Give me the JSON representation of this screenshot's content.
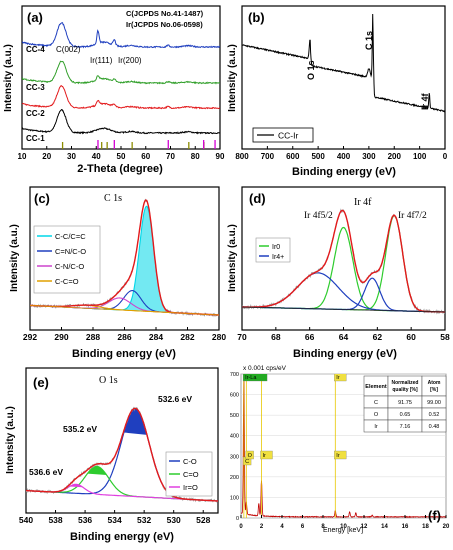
{
  "chart_data": [
    {
      "panel": "(a)",
      "type": "line",
      "xlabel": "2-Theta (degree)",
      "ylabel": "Intensity (a.u.)",
      "xlim": [
        10,
        90
      ],
      "xticks": [
        10,
        20,
        30,
        40,
        50,
        60,
        70,
        80,
        90
      ],
      "series": [
        {
          "name": "CC-1",
          "color": "#000000"
        },
        {
          "name": "CC-2",
          "color": "#e31a1c"
        },
        {
          "name": "CC-3",
          "color": "#33a02c"
        },
        {
          "name": "CC-4",
          "color": "#1f3fbf"
        }
      ],
      "peak_labels": [
        "C(002)",
        "Ir(111)",
        "Ir(200)"
      ],
      "legend": [
        {
          "text": "C(JCPDS No.41-1487)",
          "color": "#8c8c00"
        },
        {
          "text": "Ir(JCPDS No.06-0598)",
          "color": "#d400d4"
        }
      ],
      "ref_C": [
        26.4,
        42.2,
        44.4,
        54.5,
        77.4,
        83.5
      ],
      "ref_Ir": [
        40.7,
        47.3,
        69.1,
        83.4,
        88.0
      ]
    },
    {
      "panel": "(b)",
      "type": "line",
      "xlabel": "Binding energy (eV)",
      "ylabel": "Intensity (a.u.)",
      "xlim": [
        800,
        0
      ],
      "xticks": [
        800,
        700,
        600,
        500,
        400,
        300,
        200,
        100,
        0
      ],
      "series": [
        {
          "name": "CC-Ir",
          "color": "#000000"
        }
      ],
      "peak_labels": [
        "O 1s",
        "C 1s",
        "Ir 4f"
      ]
    },
    {
      "panel": "(c)",
      "type": "line",
      "title": "C 1s",
      "xlabel": "Binding energy (eV)",
      "ylabel": "Intensity (a.u.)",
      "xlim": [
        292,
        280
      ],
      "xticks": [
        292,
        290,
        288,
        286,
        284,
        282,
        280
      ],
      "components": [
        {
          "name": "C-C/C=C",
          "center": 284.6,
          "color": "#00d7e8"
        },
        {
          "name": "C=N/C-O",
          "center": 285.5,
          "color": "#1f3fbf"
        },
        {
          "name": "C-N/C-O",
          "center": 286.3,
          "color": "#cc44cc"
        },
        {
          "name": "C-C=O",
          "center": 288.4,
          "color": "#e0a000"
        }
      ]
    },
    {
      "panel": "(d)",
      "type": "line",
      "title": "Ir 4f",
      "xlabel": "Binding energy (eV)",
      "ylabel": "Intensity (a.u.)",
      "xlim": [
        70,
        58
      ],
      "xticks": [
        70,
        68,
        66,
        64,
        62,
        60,
        58
      ],
      "peak_labels": [
        "Ir 4f5/2",
        "Ir 4f7/2"
      ],
      "components": [
        {
          "name": "Ir0",
          "centers": [
            64.0,
            61.0
          ],
          "color": "#2ecc2e"
        },
        {
          "name": "Ir4+",
          "centers": [
            65.5,
            62.3
          ],
          "color": "#1f3fbf"
        }
      ]
    },
    {
      "panel": "(e)",
      "type": "line",
      "title": "O 1s",
      "xlabel": "Binding energy (eV)",
      "ylabel": "Intensity (a.u.)",
      "xlim": [
        540,
        527
      ],
      "xticks": [
        540,
        538,
        536,
        534,
        532,
        530,
        528
      ],
      "peak_labels": [
        "532.6 eV",
        "535.2 eV",
        "536.6 eV"
      ],
      "components": [
        {
          "name": "C-O",
          "center": 532.6,
          "color": "#1f3fbf"
        },
        {
          "name": "C=O",
          "center": 535.2,
          "color": "#2ecc2e"
        },
        {
          "name": "Ir=O",
          "center": 536.6,
          "color": "#e040e0"
        }
      ]
    },
    {
      "panel": "(f)",
      "type": "bar",
      "xlabel": "Energy [keV]",
      "y_unit_label": "x 0.001 cps/eV",
      "xlim": [
        0,
        20
      ],
      "ylim": [
        0,
        700
      ],
      "xticks": [
        0,
        2,
        4,
        6,
        8,
        10,
        12,
        14,
        16,
        18,
        20
      ],
      "yticks": [
        0,
        100,
        200,
        300,
        400,
        500,
        600,
        700
      ],
      "peak_tags": [
        "Ir-La",
        "Ir",
        "C",
        "O",
        "Ir",
        "Ir"
      ],
      "table": {
        "headers": [
          "Element",
          "Normalized quality [%]",
          "Atom [%]"
        ],
        "rows": [
          [
            "C",
            "91.75",
            "99.00"
          ],
          [
            "O",
            "0.65",
            "0.52"
          ],
          [
            "Ir",
            "7.16",
            "0.48"
          ]
        ]
      }
    }
  ]
}
